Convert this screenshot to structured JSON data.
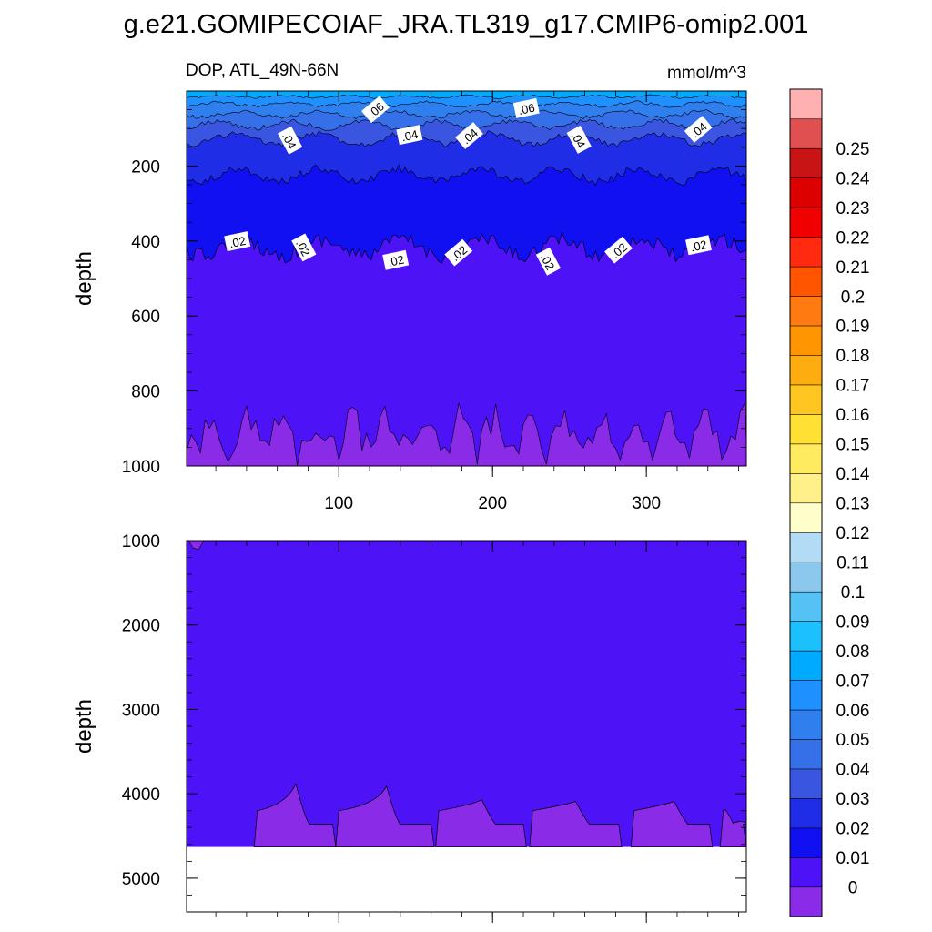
{
  "chart_data": {
    "type": "contour",
    "title": "g.e21.GOMIPECOIAF_JRA.TL319_g17.CMIP6-omip2.001",
    "left_label": "DOP, ATL_49N-66N",
    "units": "mmol/m^3",
    "x_axis": {
      "range": [
        1,
        365
      ],
      "ticks": [
        100,
        200,
        300
      ],
      "tick_labels": [
        "100",
        "200",
        "300"
      ]
    },
    "panels": [
      {
        "name": "upper",
        "ylabel": "depth",
        "y_range": [
          0,
          1000
        ],
        "y_ticks": [
          200,
          400,
          600,
          800,
          1000
        ],
        "y_tick_labels": [
          "200",
          "400",
          "600",
          "800",
          "1000"
        ],
        "contour_labels": [
          {
            "text": ".06",
            "x": 124,
            "depth": 50
          },
          {
            "text": ".06",
            "x": 222,
            "depth": 47
          },
          {
            "text": ".04",
            "x": 68,
            "depth": 132
          },
          {
            "text": ".04",
            "x": 146,
            "depth": 118
          },
          {
            "text": ".04",
            "x": 185,
            "depth": 120
          },
          {
            "text": ".04",
            "x": 256,
            "depth": 130
          },
          {
            "text": ".04",
            "x": 334,
            "depth": 103
          },
          {
            "text": ".02",
            "x": 34,
            "depth": 402
          },
          {
            "text": ".02",
            "x": 77,
            "depth": 418
          },
          {
            "text": ".02",
            "x": 137,
            "depth": 452
          },
          {
            "text": ".02",
            "x": 178,
            "depth": 432
          },
          {
            "text": ".02",
            "x": 236,
            "depth": 455
          },
          {
            "text": ".02",
            "x": 282,
            "depth": 425
          },
          {
            "text": ".02",
            "x": 334,
            "depth": 412
          }
        ]
      },
      {
        "name": "lower",
        "ylabel": "depth",
        "y_range": [
          1000,
          5400
        ],
        "y_ticks": [
          1000,
          2000,
          3000,
          4000,
          5000
        ],
        "y_tick_labels": [
          "1000",
          "2000",
          "3000",
          "4000",
          "5000"
        ],
        "data_bottom_depth": 4630,
        "zero_region_bumps": [
          {
            "x": 72,
            "depth": 3880
          },
          {
            "x": 131,
            "depth": 3910
          },
          {
            "x": 193,
            "depth": 4070
          },
          {
            "x": 254,
            "depth": 4090
          },
          {
            "x": 318,
            "depth": 4090
          }
        ]
      }
    ],
    "colorbar": {
      "levels": [
        "0",
        "0.01",
        "0.02",
        "0.03",
        "0.04",
        "0.05",
        "0.06",
        "0.07",
        "0.08",
        "0.09",
        "0.1",
        "0.11",
        "0.12",
        "0.13",
        "0.14",
        "0.15",
        "0.16",
        "0.17",
        "0.18",
        "0.19",
        "0.2",
        "0.21",
        "0.22",
        "0.23",
        "0.24",
        "0.25"
      ],
      "colors": [
        "#8a2be8",
        "#4d12f5",
        "#1010f0",
        "#1f2ee6",
        "#3a56e0",
        "#3570e8",
        "#2f7fee",
        "#1e90ff",
        "#00aaff",
        "#1cc0ff",
        "#55c2f5",
        "#8cc8ee",
        "#b2dcf5",
        "#ffffcc",
        "#fff08a",
        "#ffeb60",
        "#ffe033",
        "#ffc520",
        "#ffac10",
        "#ff9500",
        "#ff7a10",
        "#ff5500",
        "#ff2a10",
        "#f00000",
        "#dc0000",
        "#c81414",
        "#e05050",
        "#ffb0b0"
      ]
    }
  }
}
